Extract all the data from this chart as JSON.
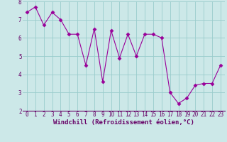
{
  "x": [
    0,
    1,
    2,
    3,
    4,
    5,
    6,
    7,
    8,
    9,
    10,
    11,
    12,
    13,
    14,
    15,
    16,
    17,
    18,
    19,
    20,
    21,
    22,
    23
  ],
  "y": [
    7.4,
    7.7,
    6.7,
    7.4,
    7.0,
    6.2,
    6.2,
    4.5,
    6.5,
    3.6,
    6.4,
    4.9,
    6.2,
    5.0,
    6.2,
    6.2,
    6.0,
    3.0,
    2.4,
    2.7,
    3.4,
    3.5,
    3.5,
    4.5
  ],
  "line_color": "#990099",
  "marker": "D",
  "marker_size": 2.5,
  "background_color": "#cce8e8",
  "grid_color": "#99cccc",
  "xlabel": "Windchill (Refroidissement éolien,°C)",
  "xlabel_color": "#660066",
  "xlabel_fontsize": 6.5,
  "tick_color": "#660066",
  "tick_fontsize": 5.5,
  "ylim": [
    2,
    8
  ],
  "xlim": [
    -0.5,
    23.5
  ],
  "yticks": [
    2,
    3,
    4,
    5,
    6,
    7,
    8
  ],
  "xticks": [
    0,
    1,
    2,
    3,
    4,
    5,
    6,
    7,
    8,
    9,
    10,
    11,
    12,
    13,
    14,
    15,
    16,
    17,
    18,
    19,
    20,
    21,
    22,
    23
  ]
}
